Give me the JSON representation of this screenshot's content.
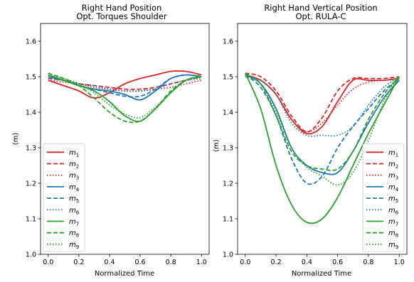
{
  "chart_data": [
    {
      "type": "line",
      "title": "Right Hand Position",
      "subtitle": "Opt. Torques Shoulder",
      "xlabel": "Normalized Time",
      "ylabel": "(m)",
      "xlim": [
        -0.05,
        1.05
      ],
      "ylim": [
        1.0,
        1.65
      ],
      "xticks": [
        "0.0",
        "0.2",
        "0.4",
        "0.6",
        "0.8",
        "1.0"
      ],
      "yticks": [
        "1.0",
        "1.1",
        "1.2",
        "1.3",
        "1.4",
        "1.5",
        "1.6"
      ],
      "legend_position": "lower-left",
      "x": [
        0.0,
        0.1,
        0.2,
        0.3,
        0.4,
        0.5,
        0.6,
        0.7,
        0.8,
        0.9,
        1.0
      ],
      "series": [
        {
          "name": "m",
          "sub": "1",
          "color": "#d62728",
          "dash": "solid",
          "values": [
            1.49,
            1.475,
            1.46,
            1.44,
            1.455,
            1.48,
            1.495,
            1.505,
            1.515,
            1.515,
            1.505
          ]
        },
        {
          "name": "m",
          "sub": "2",
          "color": "#d62728",
          "dash": "dashed",
          "values": [
            1.495,
            1.49,
            1.48,
            1.475,
            1.47,
            1.465,
            1.465,
            1.47,
            1.48,
            1.49,
            1.5
          ]
        },
        {
          "name": "m",
          "sub": "3",
          "color": "#d62728",
          "dash": "dotted",
          "values": [
            1.49,
            1.485,
            1.48,
            1.47,
            1.465,
            1.46,
            1.46,
            1.465,
            1.47,
            1.48,
            1.49
          ]
        },
        {
          "name": "m",
          "sub": "4",
          "color": "#1f77b4",
          "dash": "solid",
          "values": [
            1.5,
            1.49,
            1.475,
            1.465,
            1.46,
            1.45,
            1.435,
            1.46,
            1.495,
            1.505,
            1.5
          ]
        },
        {
          "name": "m",
          "sub": "5",
          "color": "#1f77b4",
          "dash": "dashed",
          "values": [
            1.505,
            1.49,
            1.475,
            1.465,
            1.455,
            1.445,
            1.445,
            1.465,
            1.495,
            1.505,
            1.5
          ]
        },
        {
          "name": "m",
          "sub": "6",
          "color": "#1f77b4",
          "dash": "dotted",
          "values": [
            1.495,
            1.49,
            1.48,
            1.475,
            1.465,
            1.46,
            1.46,
            1.465,
            1.48,
            1.49,
            1.495
          ]
        },
        {
          "name": "m",
          "sub": "7",
          "color": "#2ca02c",
          "dash": "solid",
          "values": [
            1.505,
            1.49,
            1.475,
            1.46,
            1.43,
            1.39,
            1.375,
            1.41,
            1.455,
            1.49,
            1.5
          ]
        },
        {
          "name": "m",
          "sub": "8",
          "color": "#2ca02c",
          "dash": "dashed",
          "values": [
            1.51,
            1.495,
            1.475,
            1.44,
            1.4,
            1.375,
            1.375,
            1.41,
            1.46,
            1.49,
            1.505
          ]
        },
        {
          "name": "m",
          "sub": "9",
          "color": "#2ca02c",
          "dash": "dotted",
          "values": [
            1.505,
            1.495,
            1.48,
            1.455,
            1.42,
            1.395,
            1.385,
            1.415,
            1.455,
            1.49,
            1.5
          ]
        }
      ]
    },
    {
      "type": "line",
      "title": "Right Hand Vertical Position",
      "subtitle": "Opt. RULA-C",
      "xlabel": "Normalized Time",
      "ylabel": "(m)",
      "xlim": [
        -0.05,
        1.05
      ],
      "ylim": [
        1.0,
        1.65
      ],
      "xticks": [
        "0.0",
        "0.2",
        "0.4",
        "0.6",
        "0.8",
        "1.0"
      ],
      "yticks": [
        "1.0",
        "1.1",
        "1.2",
        "1.3",
        "1.4",
        "1.5",
        "1.6"
      ],
      "legend_position": "lower-right",
      "x": [
        0.0,
        0.1,
        0.2,
        0.3,
        0.4,
        0.5,
        0.6,
        0.7,
        0.8,
        0.9,
        1.0
      ],
      "series": [
        {
          "name": "m",
          "sub": "1",
          "color": "#d62728",
          "dash": "solid",
          "values": [
            1.505,
            1.49,
            1.45,
            1.38,
            1.34,
            1.36,
            1.43,
            1.49,
            1.49,
            1.49,
            1.495
          ]
        },
        {
          "name": "m",
          "sub": "2",
          "color": "#d62728",
          "dash": "dashed",
          "values": [
            1.51,
            1.5,
            1.46,
            1.39,
            1.345,
            1.385,
            1.46,
            1.495,
            1.495,
            1.495,
            1.5
          ]
        },
        {
          "name": "m",
          "sub": "3",
          "color": "#d62728",
          "dash": "dotted",
          "values": [
            1.505,
            1.49,
            1.45,
            1.38,
            1.345,
            1.37,
            1.42,
            1.465,
            1.485,
            1.49,
            1.495
          ]
        },
        {
          "name": "m",
          "sub": "4",
          "color": "#1f77b4",
          "dash": "solid",
          "values": [
            1.505,
            1.48,
            1.41,
            1.3,
            1.25,
            1.23,
            1.23,
            1.29,
            1.37,
            1.44,
            1.49
          ]
        },
        {
          "name": "m",
          "sub": "5",
          "color": "#1f77b4",
          "dash": "dashed",
          "values": [
            1.505,
            1.47,
            1.39,
            1.27,
            1.2,
            1.22,
            1.3,
            1.36,
            1.41,
            1.46,
            1.495
          ]
        },
        {
          "name": "m",
          "sub": "6",
          "color": "#1f77b4",
          "dash": "dotted",
          "values": [
            1.5,
            1.49,
            1.45,
            1.37,
            1.335,
            1.335,
            1.335,
            1.36,
            1.42,
            1.47,
            1.5
          ]
        },
        {
          "name": "m",
          "sub": "7",
          "color": "#2ca02c",
          "dash": "solid",
          "values": [
            1.51,
            1.41,
            1.25,
            1.14,
            1.09,
            1.1,
            1.16,
            1.25,
            1.34,
            1.42,
            1.5
          ]
        },
        {
          "name": "m",
          "sub": "8",
          "color": "#2ca02c",
          "dash": "dashed",
          "values": [
            1.51,
            1.48,
            1.39,
            1.29,
            1.25,
            1.24,
            1.24,
            1.29,
            1.38,
            1.45,
            1.5
          ]
        },
        {
          "name": "m",
          "sub": "9",
          "color": "#2ca02c",
          "dash": "dotted",
          "values": [
            1.505,
            1.48,
            1.4,
            1.3,
            1.245,
            1.22,
            1.195,
            1.23,
            1.32,
            1.43,
            1.505
          ]
        }
      ]
    }
  ]
}
